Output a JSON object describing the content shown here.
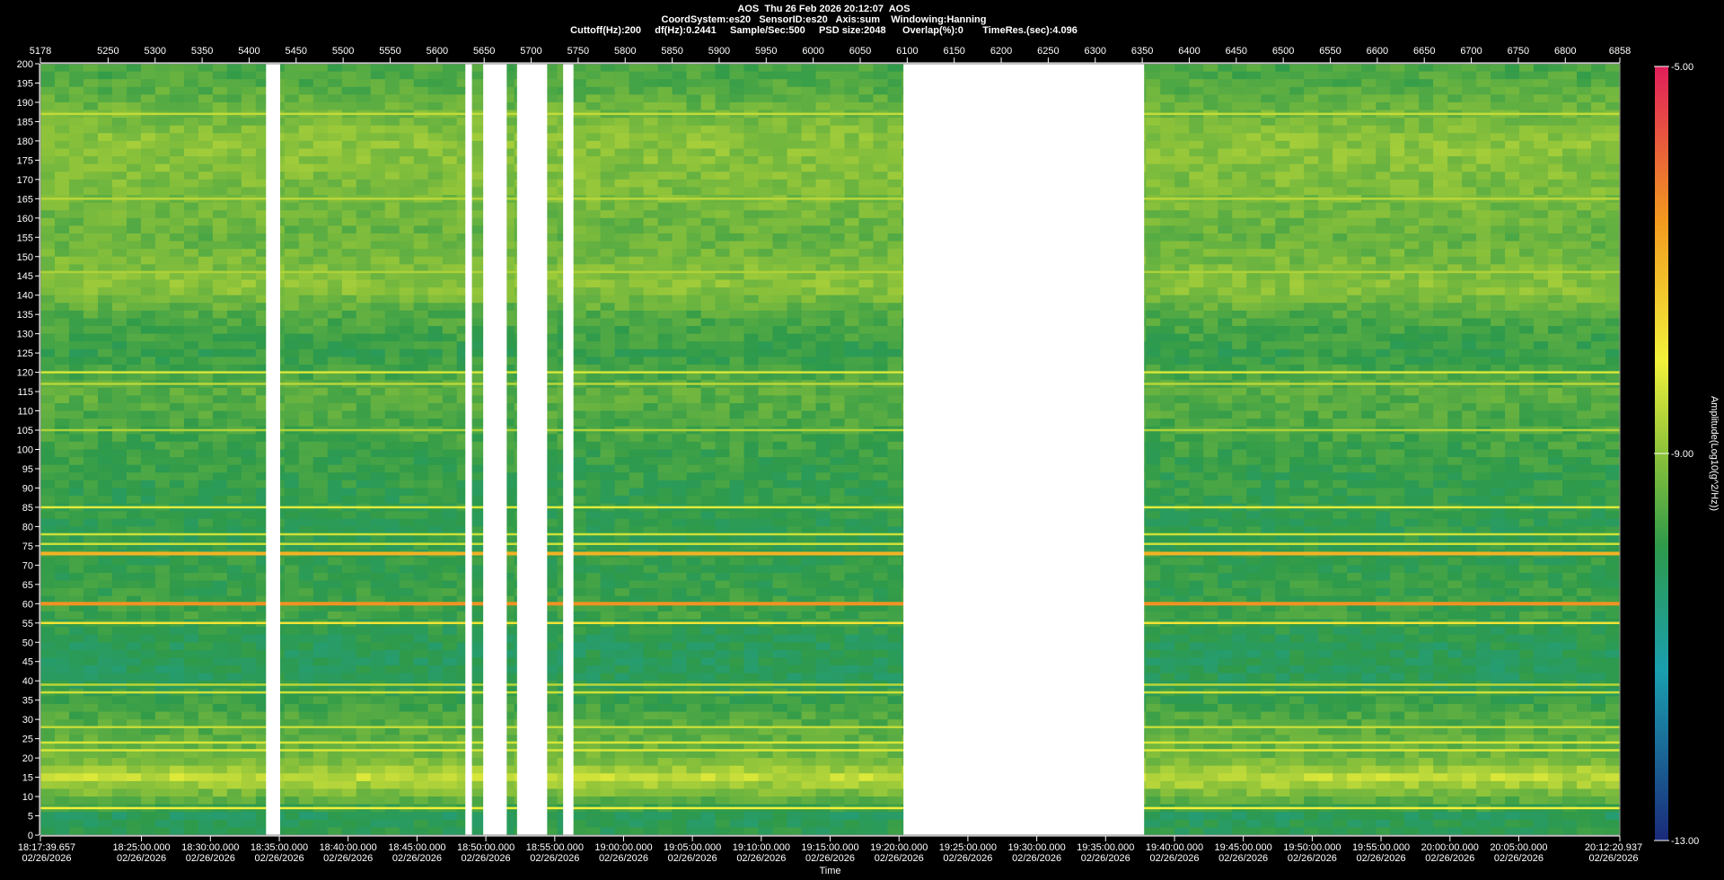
{
  "header": {
    "line1": "AOS  Thu 26 Feb 2026 20:12:07  AOS",
    "line2": "CoordSystem:es20   SensorID:es20   Axis:sum    Windowing:Hanning",
    "line3": "Cuttoff(Hz):200     df(Hz):0.2441     Sample/Sec:500     PSD size:2048      Overlap(%):0       TimeRes.(sec):4.096"
  },
  "chart_data": {
    "type": "heatmap",
    "title": "AOS  Thu 26 Feb 2026 20:12:07  AOS",
    "xlabel": "Time",
    "ylabel": "",
    "colorbar_label": "Amplitude(Log10(g^2/Hz))",
    "colorbar_ticks": [
      "-5.00",
      "-9.00",
      "-13.00"
    ],
    "colorbar_range": [
      -13,
      -5
    ],
    "ylim": [
      0,
      200
    ],
    "y_ticks": [
      200,
      195,
      190,
      185,
      180,
      175,
      170,
      165,
      160,
      155,
      150,
      145,
      140,
      135,
      130,
      125,
      120,
      115,
      110,
      105,
      100,
      95,
      90,
      85,
      80,
      75,
      70,
      65,
      60,
      55,
      50,
      45,
      40,
      35,
      30,
      25,
      20,
      15,
      10,
      5,
      0
    ],
    "xlim_index": [
      5178,
      6858
    ],
    "top_axis_ticks": [
      5178,
      5250,
      5300,
      5350,
      5400,
      5450,
      5500,
      5550,
      5600,
      5650,
      5700,
      5750,
      5800,
      5850,
      5900,
      5950,
      6000,
      6050,
      6100,
      6150,
      6200,
      6250,
      6300,
      6350,
      6400,
      6450,
      6500,
      6550,
      6600,
      6650,
      6700,
      6750,
      6800,
      6858
    ],
    "time_ticks": [
      {
        "time": "18:17:39.657",
        "date": "02/26/2026",
        "index": 5178
      },
      {
        "time": "18:25:00.000",
        "date": "02/26/2026",
        "index": 5285.5
      },
      {
        "time": "18:30:00.000",
        "date": "02/26/2026",
        "index": 5358.8
      },
      {
        "time": "18:35:00.000",
        "date": "02/26/2026",
        "index": 5432.1
      },
      {
        "time": "18:40:00.000",
        "date": "02/26/2026",
        "index": 5505.3
      },
      {
        "time": "18:45:00.000",
        "date": "02/26/2026",
        "index": 5578.6
      },
      {
        "time": "18:50:00.000",
        "date": "02/26/2026",
        "index": 5651.8
      },
      {
        "time": "18:55:00.000",
        "date": "02/26/2026",
        "index": 5725.1
      },
      {
        "time": "19:00:00.000",
        "date": "02/26/2026",
        "index": 5798.3
      },
      {
        "time": "19:05:00.000",
        "date": "02/26/2026",
        "index": 5871.5
      },
      {
        "time": "19:10:00.000",
        "date": "02/26/2026",
        "index": 5944.8
      },
      {
        "time": "19:15:00.000",
        "date": "02/26/2026",
        "index": 6018
      },
      {
        "time": "19:20:00.000",
        "date": "02/26/2026",
        "index": 6091.3
      },
      {
        "time": "19:25:00.000",
        "date": "02/26/2026",
        "index": 6164.5
      },
      {
        "time": "19:30:00.000",
        "date": "02/26/2026",
        "index": 6237.8
      },
      {
        "time": "19:35:00.000",
        "date": "02/26/2026",
        "index": 6311
      },
      {
        "time": "19:40:00.000",
        "date": "02/26/2026",
        "index": 6384.3
      },
      {
        "time": "19:45:00.000",
        "date": "02/26/2026",
        "index": 6457.5
      },
      {
        "time": "19:50:00.000",
        "date": "02/26/2026",
        "index": 6530.8
      },
      {
        "time": "19:55:00.000",
        "date": "02/26/2026",
        "index": 6604
      },
      {
        "time": "20:00:00.000",
        "date": "02/26/2026",
        "index": 6677.3
      },
      {
        "time": "20:05:00.000",
        "date": "02/26/2026",
        "index": 6750.5
      },
      {
        "time": "20:12:20.937",
        "date": "02/26/2026",
        "index": 6858
      }
    ],
    "data_gaps_index": [
      [
        5418,
        5433
      ],
      [
        5630,
        5637
      ],
      [
        5649,
        5674
      ],
      [
        5685,
        5717
      ],
      [
        5734,
        5745
      ],
      [
        6096,
        6352
      ]
    ],
    "strong_lines_hz": [
      {
        "hz": 60,
        "level": -6.5
      },
      {
        "hz": 73,
        "level": -7.0
      },
      {
        "hz": 55,
        "level": -7.8
      },
      {
        "hz": 85,
        "level": -8.2
      },
      {
        "hz": 78,
        "level": -8.4
      },
      {
        "hz": 75.5,
        "level": -8.4
      },
      {
        "hz": 7,
        "level": -8.0
      },
      {
        "hz": 37,
        "level": -8.4
      },
      {
        "hz": 39,
        "level": -8.6
      },
      {
        "hz": 120,
        "level": -8.3
      },
      {
        "hz": 117,
        "level": -8.6
      },
      {
        "hz": 105,
        "level": -8.7
      },
      {
        "hz": 146,
        "level": -8.7
      },
      {
        "hz": 165,
        "level": -8.6
      },
      {
        "hz": 187,
        "level": -8.5
      },
      {
        "hz": 22,
        "level": -8.3
      },
      {
        "hz": 24,
        "level": -8.3
      },
      {
        "hz": 28,
        "level": -8.5
      }
    ],
    "background_levels_hz": [
      {
        "hz": 0,
        "level": -10.0
      },
      {
        "hz": 5,
        "level": -10.2
      },
      {
        "hz": 12,
        "level": -9.0
      },
      {
        "hz": 15,
        "level": -8.5
      },
      {
        "hz": 20,
        "level": -9.3
      },
      {
        "hz": 30,
        "level": -9.6
      },
      {
        "hz": 42,
        "level": -10.2
      },
      {
        "hz": 52,
        "level": -10.1
      },
      {
        "hz": 57,
        "level": -9.8
      },
      {
        "hz": 65,
        "level": -9.9
      },
      {
        "hz": 80,
        "level": -10.0
      },
      {
        "hz": 95,
        "level": -9.9
      },
      {
        "hz": 105,
        "level": -9.7
      },
      {
        "hz": 115,
        "level": -9.5
      },
      {
        "hz": 125,
        "level": -9.9
      },
      {
        "hz": 135,
        "level": -9.6
      },
      {
        "hz": 142,
        "level": -9.0
      },
      {
        "hz": 155,
        "level": -9.4
      },
      {
        "hz": 165,
        "level": -9.2
      },
      {
        "hz": 180,
        "level": -9.0
      },
      {
        "hz": 195,
        "level": -9.6
      },
      {
        "hz": 200,
        "level": -9.7
      }
    ],
    "colors": {
      "background": "#000000",
      "gap": "#ffffff",
      "colormap": [
        "#1a2a7a",
        "#1a9fb0",
        "#2e9a4a",
        "#8cc23a",
        "#f2f23a",
        "#f29a1e",
        "#e01e5a"
      ]
    }
  }
}
